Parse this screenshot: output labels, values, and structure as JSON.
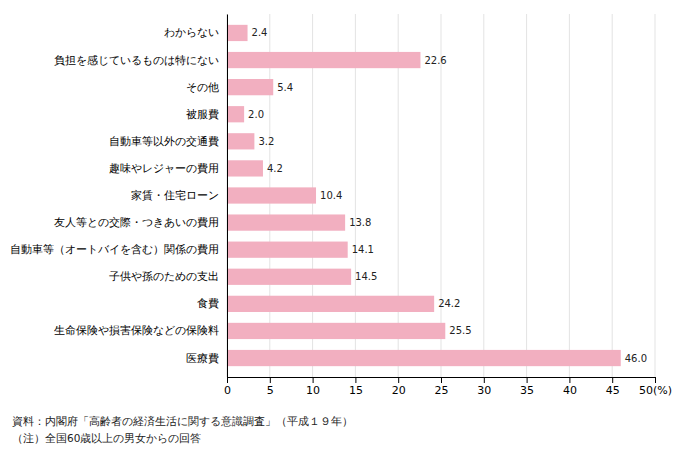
{
  "chart_data": {
    "type": "bar",
    "orientation": "horizontal",
    "categories": [
      "わからない",
      "負担を感じているものは特にない",
      "その他",
      "被服費",
      "自動車等以外の交通費",
      "趣味やレジャーの費用",
      "家賃・住宅ローン",
      "友人等との交際・つきあいの費用",
      "自動車等（オートバイを含む）関係の費用",
      "子供や孫のための支出",
      "食費",
      "生命保険や損害保険などの保険料",
      "医療費"
    ],
    "values": [
      2.4,
      22.6,
      5.4,
      2.0,
      3.2,
      4.2,
      10.4,
      13.8,
      14.1,
      14.5,
      24.2,
      25.5,
      46.0
    ],
    "value_labels": [
      "2.4",
      "22.6",
      "5.4",
      "2.0",
      "3.2",
      "4.2",
      "10.4",
      "13.8",
      "14.1",
      "14.5",
      "24.2",
      "25.5",
      "46.0"
    ],
    "data_labels": true,
    "color": "#f2afc0",
    "xlim": [
      0,
      50
    ],
    "xticks": [
      0,
      5,
      10,
      15,
      20,
      25,
      30,
      35,
      40,
      45,
      {
        "value": 50,
        "label": "50(%)"
      }
    ],
    "grid": true,
    "annotations": [
      "資料：内閣府「高齢者の経済生活に関する意識調査」（平成１９年）",
      "（注）全国60歳以上の男女からの回答"
    ]
  }
}
